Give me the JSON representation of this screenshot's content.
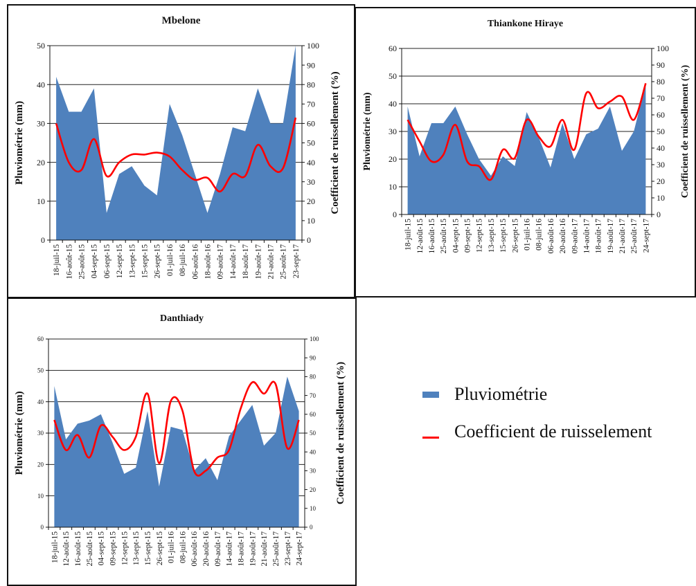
{
  "legend": {
    "area_label": "Pluviométrie",
    "line_label": "Coefficient de ruisselement",
    "area_color": "#4f81bd",
    "line_color": "#ff0000"
  },
  "chart_data": [
    {
      "type": "area",
      "title": "Mbelone",
      "ylabel": "Pluviométrie (mm)",
      "y2label": "Coefficient de ruissellement (%)",
      "ylim": [
        0,
        50
      ],
      "yticks": [
        0,
        10,
        20,
        30,
        40,
        50
      ],
      "y2lim": [
        0,
        100
      ],
      "y2ticks": [
        0,
        10,
        20,
        30,
        40,
        50,
        60,
        70,
        80,
        90,
        100
      ],
      "grid": true,
      "categories": [
        "18-juil-15",
        "16-août-15",
        "25-août-15",
        "04-sept-15",
        "06-sept-15",
        "12-sept-15",
        "13-sept-15",
        "15-sept-15",
        "26-sept-15",
        "01-juil-16",
        "08-juil-16",
        "06-août-16",
        "18-août-16",
        "09-août-17",
        "14-août-17",
        "18-août-17",
        "19-août-17",
        "21-août-17",
        "25-août-17",
        "23-sept-17"
      ],
      "series": [
        {
          "name": "Pluviométrie",
          "kind": "area",
          "axis": "left",
          "values": [
            42,
            33,
            33,
            39,
            7,
            17,
            19,
            14,
            11.5,
            35,
            27,
            17,
            7,
            17,
            29,
            28,
            39,
            30,
            30,
            50
          ]
        },
        {
          "name": "Coefficient de ruisselement",
          "kind": "line",
          "axis": "right",
          "values": [
            60,
            40,
            36,
            52,
            33,
            40,
            44,
            44,
            45,
            43,
            36,
            31,
            32,
            25,
            34,
            33,
            49,
            38,
            37,
            63
          ]
        }
      ]
    },
    {
      "type": "area",
      "title": "Thiankone Hiraye",
      "ylabel": "Pluviométrie (mm)",
      "y2label": "Coefficient de ruissellement (%)",
      "ylim": [
        0,
        60
      ],
      "yticks": [
        0,
        10,
        20,
        30,
        40,
        50,
        60
      ],
      "y2lim": [
        0,
        100
      ],
      "y2ticks": [
        0,
        10,
        20,
        30,
        40,
        50,
        60,
        70,
        80,
        90,
        100
      ],
      "grid": true,
      "categories": [
        "18-juil-15",
        "12-août-15",
        "16-août-15",
        "25-août-15",
        "04-sept-15",
        "09-sept-15",
        "12-sept-15",
        "13-sept-15",
        "15-sept-15",
        "26-sept-15",
        "01-juil-16",
        "08-juil-16",
        "06-août-16",
        "20-août-16",
        "09-août-17",
        "14-août-17",
        "18-août-17",
        "19-août-17",
        "21-août-17",
        "25-août-17",
        "24-sept-17"
      ],
      "series": [
        {
          "name": "Pluviométrie",
          "kind": "area",
          "axis": "left",
          "values": [
            39,
            21,
            33,
            33,
            39,
            29,
            20,
            14,
            21,
            17.5,
            37,
            28,
            17,
            33,
            20,
            29,
            31,
            39,
            23,
            30,
            47
          ]
        },
        {
          "name": "Coefficient de ruisselement",
          "kind": "line",
          "axis": "right",
          "values": [
            57,
            44,
            32,
            36,
            54,
            32,
            29,
            21,
            39,
            34,
            57,
            47,
            41,
            57,
            39,
            73,
            64,
            68,
            71,
            57,
            79
          ]
        }
      ]
    },
    {
      "type": "area",
      "title": "Danthiady",
      "ylabel": "Pluviométrie (mm)",
      "y2label": "Coefficient de ruissellement (%)",
      "ylim": [
        0,
        60
      ],
      "yticks": [
        0,
        10,
        20,
        30,
        40,
        50,
        60
      ],
      "y2lim": [
        0,
        100
      ],
      "y2ticks": [
        0,
        10,
        20,
        30,
        40,
        50,
        60,
        70,
        80,
        90,
        100
      ],
      "grid": true,
      "categories": [
        "18-juil-15",
        "12-août-15",
        "16-août-15",
        "25-août-15",
        "04-sept-15",
        "09-sept-15",
        "12-sept-15",
        "13-sept-15",
        "15-sept-15",
        "26-sept-15",
        "01-juil-16",
        "08-juil-16",
        "06-août-16",
        "20-août-16",
        "09-août-17",
        "14-août-17",
        "18-août-17",
        "19-août-17",
        "21-août-17",
        "25-août-17",
        "23-sept-17",
        "24-sept-17"
      ],
      "series": [
        {
          "name": "Pluviométrie",
          "kind": "area",
          "axis": "left",
          "values": [
            45,
            28,
            33,
            34,
            36,
            27,
            17,
            19,
            37,
            13,
            32,
            31,
            18,
            22,
            15,
            29,
            34,
            39,
            26,
            30,
            48,
            37
          ]
        },
        {
          "name": "Coefficient de ruisselement",
          "kind": "line",
          "axis": "right",
          "values": [
            57,
            41,
            49,
            37,
            54,
            48,
            41,
            48,
            71,
            34,
            67,
            62,
            30,
            30,
            37,
            41,
            63,
            77,
            71,
            76,
            42,
            57
          ]
        }
      ]
    }
  ]
}
